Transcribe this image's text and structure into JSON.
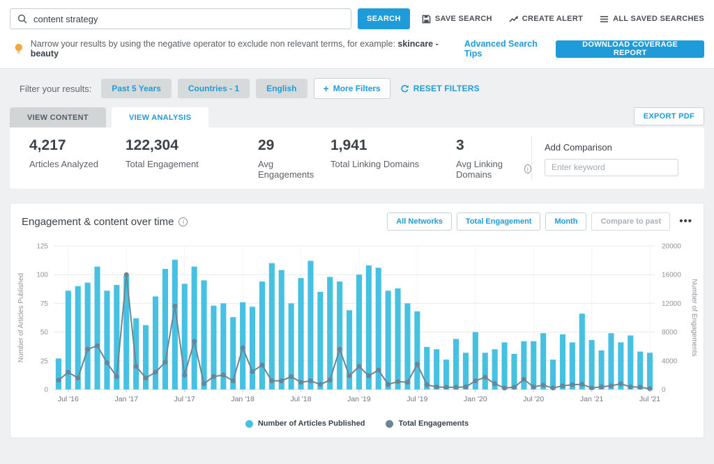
{
  "search": {
    "query": "content strategy",
    "button": "SEARCH"
  },
  "top_actions": [
    {
      "id": "save-search",
      "icon": "floppy-icon",
      "label": "SAVE SEARCH"
    },
    {
      "id": "create-alert",
      "icon": "trend-icon",
      "label": "CREATE ALERT"
    },
    {
      "id": "all-saved-searches",
      "icon": "list-icon",
      "label": "ALL SAVED SEARCHES"
    }
  ],
  "tip": {
    "text_prefix": "Narrow your results by using the negative operator to exclude non relevant terms, for example: ",
    "example": "skincare -beauty",
    "link": "Advanced Search Tips"
  },
  "download_report_label": "DOWNLOAD COVERAGE REPORT",
  "filters": {
    "label": "Filter your results:",
    "chips": [
      "Past 5 Years",
      "Countries - 1",
      "English"
    ],
    "more_label": "More Filters",
    "reset_label": "RESET FILTERS"
  },
  "tabs": {
    "content": "VIEW CONTENT",
    "analysis": "VIEW ANALYSIS",
    "export": "EXPORT PDF"
  },
  "stats": [
    {
      "value": "4,217",
      "label": "Articles Analyzed",
      "info": false
    },
    {
      "value": "122,304",
      "label": "Total Engagement",
      "info": false
    },
    {
      "value": "29",
      "label": "Avg Engagements",
      "info": false
    },
    {
      "value": "1,941",
      "label": "Total Linking Domains",
      "info": false
    },
    {
      "value": "3",
      "label": "Avg Linking Domains",
      "info": true
    }
  ],
  "comparison": {
    "title": "Add Comparison",
    "placeholder": "Enter keyword"
  },
  "chart_panel": {
    "title": "Engagement & content over time",
    "buttons": [
      "All Networks",
      "Total Engagement",
      "Month"
    ],
    "disabled_button": "Compare to past",
    "menu": "•••"
  },
  "colors": {
    "accent_blue": "#1e9bd8",
    "bar_cyan": "#46c1e2",
    "line_gray": "#6d8494",
    "grid": "#e8eaec",
    "axis_text": "#8d9499"
  },
  "chart_data": {
    "type": "bar",
    "note": "dual-axis combo: bars = articles published (left axis), line = total engagements (right axis)",
    "categories": [
      "Jun '16",
      "Jul '16",
      "Aug '16",
      "Sep '16",
      "Oct '16",
      "Nov '16",
      "Dec '16",
      "Jan '17",
      "Feb '17",
      "Mar '17",
      "Apr '17",
      "May '17",
      "Jun '17",
      "Jul '17",
      "Aug '17",
      "Sep '17",
      "Oct '17",
      "Nov '17",
      "Dec '17",
      "Jan '18",
      "Feb '18",
      "Mar '18",
      "Apr '18",
      "May '18",
      "Jun '18",
      "Jul '18",
      "Aug '18",
      "Sep '18",
      "Oct '18",
      "Nov '18",
      "Dec '18",
      "Jan '19",
      "Feb '19",
      "Mar '19",
      "Apr '19",
      "May '19",
      "Jun '19",
      "Jul '19",
      "Aug '19",
      "Sep '19",
      "Oct '19",
      "Nov '19",
      "Dec '19",
      "Jan '20",
      "Feb '20",
      "Mar '20",
      "Apr '20",
      "May '20",
      "Jun '20",
      "Jul '20",
      "Aug '20",
      "Sep '20",
      "Oct '20",
      "Nov '20",
      "Dec '20",
      "Jan '21",
      "Feb '21",
      "Mar '21",
      "Apr '21",
      "May '21",
      "Jun '21",
      "Jul '21"
    ],
    "series": [
      {
        "name": "Number of Articles Published",
        "type": "bar",
        "axis": "left",
        "values": [
          27,
          86,
          90,
          93,
          107,
          86,
          91,
          99,
          62,
          56,
          81,
          105,
          113,
          92,
          107,
          95,
          73,
          75,
          63,
          76,
          72,
          94,
          110,
          104,
          75,
          97,
          112,
          85,
          98,
          94,
          69,
          100,
          108,
          106,
          86,
          88,
          75,
          68,
          37,
          35,
          26,
          44,
          32,
          50,
          32,
          35,
          41,
          31,
          42,
          42,
          49,
          26,
          48,
          41,
          66,
          43,
          34,
          49,
          41,
          47,
          33,
          32
        ]
      },
      {
        "name": "Total Engagements",
        "type": "line",
        "axis": "right",
        "values": [
          1300,
          2400,
          1600,
          5600,
          6100,
          3700,
          1800,
          16000,
          3200,
          1600,
          2400,
          3800,
          11600,
          2000,
          6700,
          800,
          1800,
          2000,
          1200,
          5800,
          2500,
          3400,
          1200,
          1200,
          1800,
          1000,
          1200,
          700,
          1300,
          5600,
          1900,
          3200,
          1900,
          2700,
          700,
          1100,
          1000,
          3500,
          650,
          350,
          300,
          300,
          350,
          1200,
          1700,
          800,
          200,
          300,
          1400,
          360,
          600,
          200,
          500,
          660,
          720,
          200,
          360,
          500,
          800,
          360,
          320,
          100
        ]
      }
    ],
    "left_axis": {
      "label": "Number of Articles Published",
      "min": 0,
      "max": 125,
      "ticks": [
        0,
        25,
        50,
        75,
        100,
        125
      ]
    },
    "right_axis": {
      "label": "Number of Engagements",
      "min": 0,
      "max": 20000,
      "ticks": [
        0,
        4000,
        8000,
        12000,
        16000,
        20000
      ]
    },
    "x_tick_indices": [
      1,
      7,
      13,
      19,
      25,
      31,
      37,
      43,
      49,
      55,
      61
    ],
    "grid": true,
    "legend_position": "bottom"
  }
}
